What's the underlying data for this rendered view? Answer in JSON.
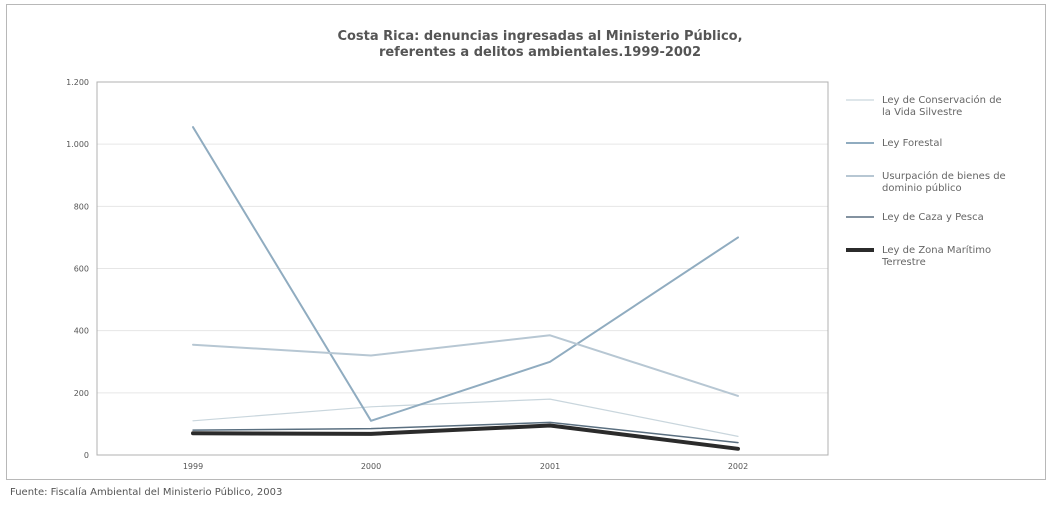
{
  "chart_data": {
    "type": "line",
    "title": [
      "Costa Rica: denuncias ingresadas al Ministerio Público,",
      "referentes a delitos ambientales.1999-2002"
    ],
    "categories": [
      "1999",
      "2000",
      "2001",
      "2002"
    ],
    "ylim": [
      0,
      1200
    ],
    "yticks": [
      0,
      200,
      400,
      600,
      800,
      1000,
      1200
    ],
    "ytick_labels": [
      "0",
      "200",
      "400",
      "600",
      "800",
      "1.000",
      "1.200"
    ],
    "grid": true,
    "legend": "right",
    "series": [
      {
        "name": "Ley de Conservación de la Vida Silvestre",
        "values": [
          110,
          155,
          180,
          60
        ],
        "color": "#c9d6dd",
        "width": 1.2
      },
      {
        "name": "Ley Forestal",
        "values": [
          1055,
          110,
          300,
          700
        ],
        "color": "#90acc0",
        "width": 2
      },
      {
        "name": "Usurpación de bienes de dominio público",
        "values": [
          355,
          320,
          385,
          190
        ],
        "color": "#b7c7d3",
        "width": 2
      },
      {
        "name": "Ley de Caza y Pesca",
        "values": [
          80,
          85,
          105,
          40
        ],
        "color": "#5a6f80",
        "width": 1.5
      },
      {
        "name": "Ley de Zona Marítimo Terrestre",
        "values": [
          70,
          68,
          95,
          20
        ],
        "color": "#2b2b2b",
        "width": 4
      }
    ]
  },
  "source": "Fuente: Fiscalía Ambiental del Ministerio Público, 2003"
}
